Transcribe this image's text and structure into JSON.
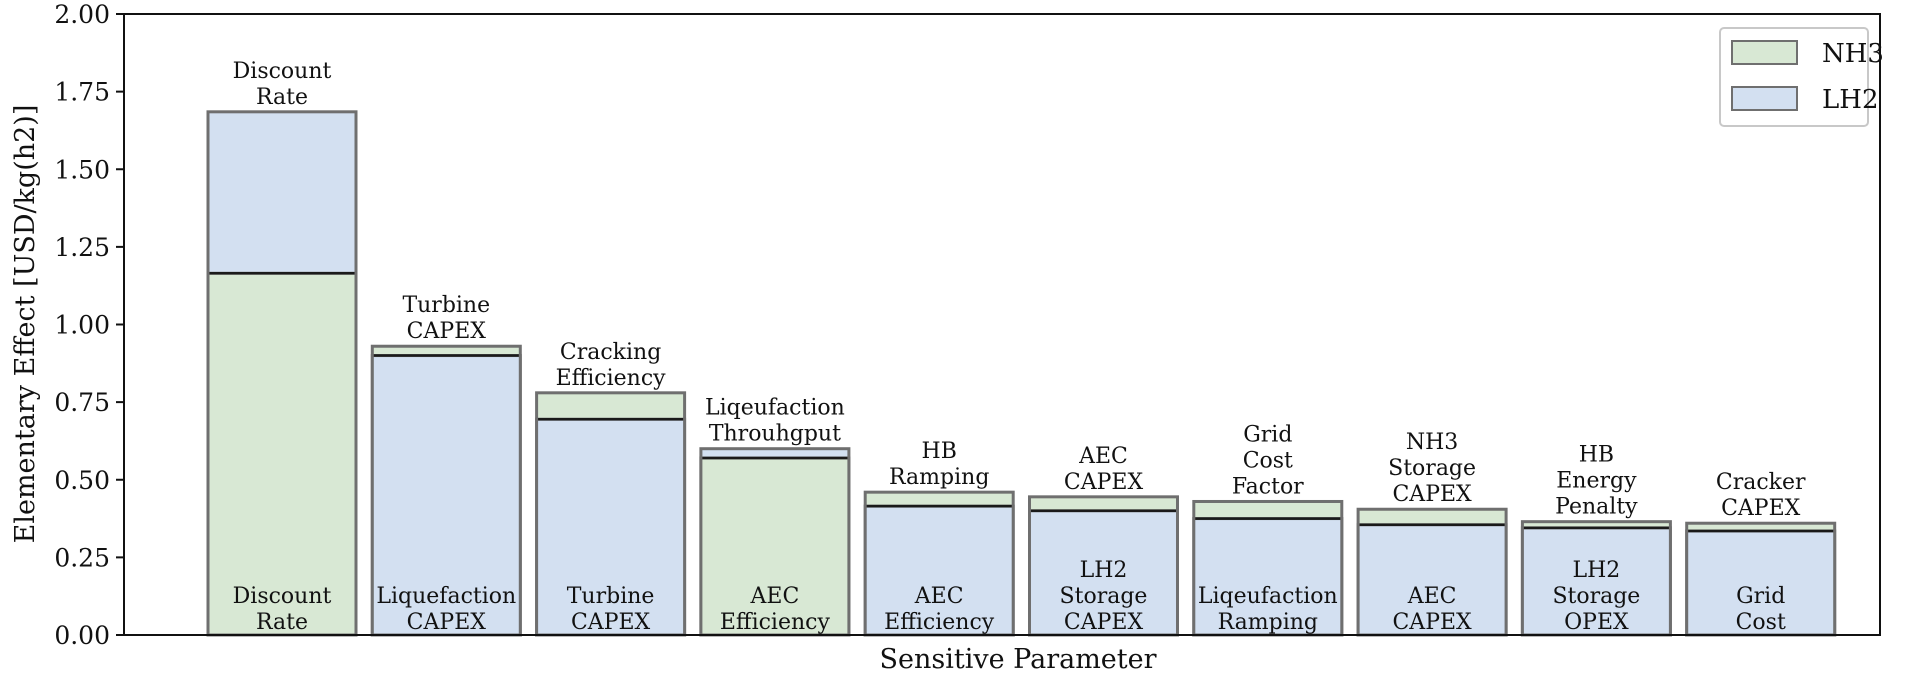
{
  "chart_data": {
    "type": "bar",
    "xlabel": "Sensitive Parameter",
    "ylabel": "Elementary Effect [USD/kg(h2)]",
    "ylim": [
      0,
      2.0
    ],
    "yticks": [
      "0.00",
      "0.25",
      "0.50",
      "0.75",
      "1.00",
      "1.25",
      "1.50",
      "1.75",
      "2.00"
    ],
    "grid": false,
    "legend_position": "top-right",
    "colors": {
      "NH3": "#d8e8d4",
      "LH2": "#d3e0f1",
      "edge": "#6f6f6f",
      "divider": "#1a1a1a"
    },
    "series": [
      {
        "name": "NH3",
        "labels": [
          "Discount Rate",
          "Turbine CAPEX",
          "Cracking Efficiency",
          "AEC Efficiency",
          "HB Ramping",
          "AEC CAPEX",
          "Grid Cost Factor",
          "NH3 Storage CAPEX",
          "HB Energy Penalty",
          "Cracker CAPEX"
        ],
        "values": [
          1.165,
          0.93,
          0.78,
          0.57,
          0.46,
          0.445,
          0.43,
          0.405,
          0.365,
          0.36
        ]
      },
      {
        "name": "LH2",
        "labels": [
          "Discount Rate",
          "Liquefaction CAPEX",
          "Turbine CAPEX",
          "Liqeufaction Throuhgput",
          "AEC Efficiency",
          "LH2 Storage CAPEX",
          "Liqeufaction Ramping",
          "AEC CAPEX",
          "LH2 Storage OPEX",
          "Grid Cost"
        ],
        "values": [
          1.685,
          0.9,
          0.695,
          0.6,
          0.415,
          0.4,
          0.375,
          0.355,
          0.345,
          0.335
        ]
      }
    ],
    "bars": [
      {
        "top_label_lines": [
          "Discount",
          "Rate"
        ],
        "bottom_label_lines": [
          "Discount",
          "Rate"
        ],
        "nh3": 1.165,
        "lh2": 1.685
      },
      {
        "top_label_lines": [
          "Turbine",
          "CAPEX"
        ],
        "bottom_label_lines": [
          "Liquefaction",
          "CAPEX"
        ],
        "nh3": 0.93,
        "lh2": 0.9
      },
      {
        "top_label_lines": [
          "Cracking",
          "Efficiency"
        ],
        "bottom_label_lines": [
          "Turbine",
          "CAPEX"
        ],
        "nh3": 0.78,
        "lh2": 0.695
      },
      {
        "top_label_lines": [
          "Liqeufaction",
          "Throuhgput"
        ],
        "bottom_label_lines": [
          "AEC",
          "Efficiency"
        ],
        "nh3": 0.57,
        "lh2": 0.6
      },
      {
        "top_label_lines": [
          "HB",
          "Ramping"
        ],
        "bottom_label_lines": [
          "AEC",
          "Efficiency"
        ],
        "nh3": 0.46,
        "lh2": 0.415
      },
      {
        "top_label_lines": [
          "AEC",
          "CAPEX"
        ],
        "bottom_label_lines": [
          "LH2",
          "Storage",
          "CAPEX"
        ],
        "nh3": 0.445,
        "lh2": 0.4
      },
      {
        "top_label_lines": [
          "Grid",
          "Cost",
          "Factor"
        ],
        "bottom_label_lines": [
          "Liqeufaction",
          "Ramping"
        ],
        "nh3": 0.43,
        "lh2": 0.375
      },
      {
        "top_label_lines": [
          "NH3",
          "Storage",
          "CAPEX"
        ],
        "bottom_label_lines": [
          "AEC",
          "CAPEX"
        ],
        "nh3": 0.405,
        "lh2": 0.355
      },
      {
        "top_label_lines": [
          "HB",
          "Energy",
          "Penalty"
        ],
        "bottom_label_lines": [
          "LH2",
          "Storage",
          "OPEX"
        ],
        "nh3": 0.365,
        "lh2": 0.345
      },
      {
        "top_label_lines": [
          "Cracker",
          "CAPEX"
        ],
        "bottom_label_lines": [
          "Grid",
          "Cost"
        ],
        "nh3": 0.36,
        "lh2": 0.335
      }
    ]
  }
}
